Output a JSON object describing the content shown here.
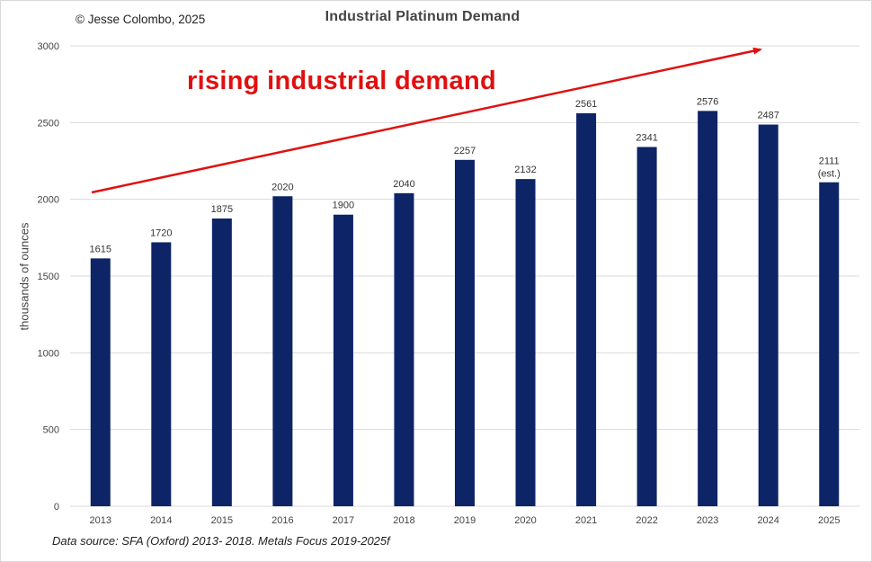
{
  "copyright": "© Jesse Colombo, 2025",
  "annotation": "rising industrial demand",
  "source_note": "Data source: SFA (Oxford) 2013- 2018. Metals Focus 2019-2025f",
  "colors": {
    "bar": "#0d2466",
    "arrow": "#e01010",
    "grid": "#d9d9d9"
  },
  "chart_data": {
    "type": "bar",
    "title": "Industrial Platinum Demand",
    "xlabel": "",
    "ylabel": "thousands of ounces",
    "categories": [
      "2013",
      "2014",
      "2015",
      "2016",
      "2017",
      "2018",
      "2019",
      "2020",
      "2021",
      "2022",
      "2023",
      "2024",
      "2025"
    ],
    "values": [
      1615,
      1720,
      1875,
      2020,
      1900,
      2040,
      2257,
      2132,
      2561,
      2341,
      2576,
      2487,
      2111
    ],
    "data_labels": [
      "1615",
      "1720",
      "1875",
      "2020",
      "1900",
      "2040",
      "2257",
      "2132",
      "2561",
      "2341",
      "2576",
      "2487",
      "2111"
    ],
    "estimate_note": {
      "category": "2025",
      "text": "(est.)"
    },
    "ylim": [
      0,
      3000
    ],
    "yticks": [
      0,
      500,
      1000,
      1500,
      2000,
      2500,
      3000
    ],
    "grid": true,
    "legend": "none"
  }
}
